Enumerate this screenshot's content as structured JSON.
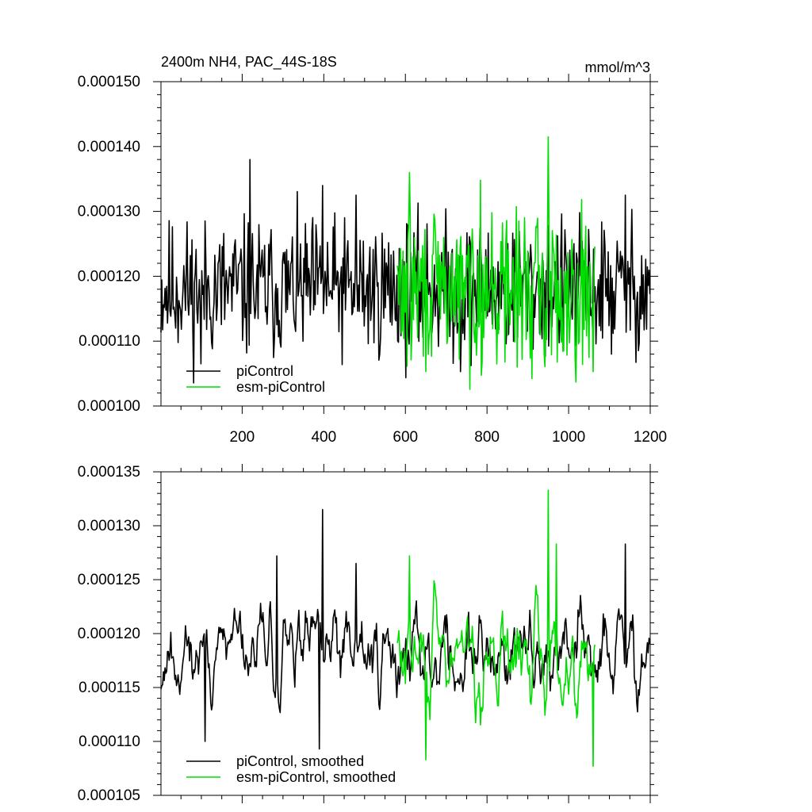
{
  "chart_data": [
    {
      "type": "line",
      "title": "2400m NH4, PAC_44S-18S",
      "units": "mmol/m^3",
      "xlim": [
        1,
        1200
      ],
      "ylim": [
        0.0001,
        0.00015
      ],
      "x_ticks": [
        200,
        400,
        600,
        800,
        1000,
        1200
      ],
      "y_ticks": [
        "0.000100",
        "0.000110",
        "0.000120",
        "0.000130",
        "0.000140",
        "0.000150"
      ],
      "y_tick_values": [
        0.0001,
        0.00011,
        0.00012,
        0.00013,
        0.00014,
        0.00015
      ],
      "series": [
        {
          "name": "piControl",
          "color": "#000000",
          "x_start": 1,
          "x_end": 1200,
          "mean": 0.000118,
          "noise": 6.2e-06,
          "seed": 11,
          "peaks": [
            [
              220,
              0.000138
            ],
            [
              397,
              0.000134
            ],
            [
              1140,
              0.0001325
            ],
            [
              100,
              0.0001065
            ],
            [
              735,
              0.0001053
            ],
            [
              480,
              0.0001325
            ]
          ]
        },
        {
          "name": "esm-piControl",
          "color": "#00dd00",
          "x_start": 580,
          "x_end": 1065,
          "mean": 0.0001178,
          "noise": 6.8e-06,
          "seed": 29,
          "peaks": [
            [
              950,
              0.0001415
            ],
            [
              610,
              0.000136
            ],
            [
              650,
              0.0001053
            ],
            [
              1060,
              0.0001053
            ],
            [
              785,
              0.0001348
            ]
          ]
        }
      ]
    },
    {
      "type": "line",
      "title": "",
      "units": "",
      "xlim": [
        1,
        1200
      ],
      "ylim": [
        0.000105,
        0.000135
      ],
      "x_ticks": [],
      "y_ticks": [
        "0.000105",
        "0.000110",
        "0.000115",
        "0.000120",
        "0.000125",
        "0.000130",
        "0.000135"
      ],
      "y_tick_values": [
        0.000105,
        0.00011,
        0.000115,
        0.00012,
        0.000125,
        0.00013,
        0.000135
      ],
      "series": [
        {
          "name": "piControl, smoothed",
          "color": "#000000",
          "x_start": 1,
          "x_end": 1200,
          "mean": 0.0001182,
          "noise": 3.4e-06,
          "seed": 11,
          "peaks": [
            [
              397,
              0.0001315
            ],
            [
              1140,
              0.0001283
            ],
            [
              285,
              0.0001272
            ],
            [
              110,
              0.00011
            ],
            [
              390,
              0.0001093
            ],
            [
              480,
              0.0001265
            ]
          ]
        },
        {
          "name": "esm-piControl, smoothed",
          "color": "#00dd00",
          "x_start": 580,
          "x_end": 1065,
          "mean": 0.0001178,
          "noise": 3.6e-06,
          "seed": 29,
          "peaks": [
            [
              950,
              0.0001333
            ],
            [
              970,
              0.0001283
            ],
            [
              1060,
              0.0001077
            ],
            [
              650,
              0.0001083
            ],
            [
              610,
              0.0001272
            ]
          ]
        }
      ]
    }
  ]
}
